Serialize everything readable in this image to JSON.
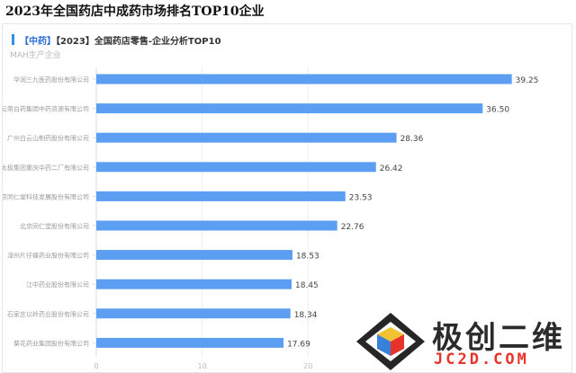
{
  "page": {
    "title": "2023年全国药店中成药市场排名TOP10企业"
  },
  "card": {
    "tag_left": "【中药】",
    "title": "【2023】全国药店零售-企业分析TOP10"
  },
  "chart_data": {
    "type": "bar",
    "orientation": "horizontal",
    "ylabel": "MAH生产企业",
    "categories": [
      "华润三九医药股份有限公司",
      "云南白药集团中药资源有限公司",
      "广州白云山制药股份有限公司",
      "太极集团重庆中药二厂有限公司",
      "北京同仁堂科技发展股份有限公司",
      "北京同仁堂股份有限公司",
      "漳州片仔癀药业股份有限公司",
      "江中药业股份有限公司",
      "石家庄以岭药业股份有限公司",
      "葵花药业集团股份有限公司"
    ],
    "values": [
      39.25,
      36.5,
      28.36,
      26.42,
      23.53,
      22.76,
      18.53,
      18.45,
      18.34,
      17.69
    ],
    "value_labels": [
      "39.25",
      "36.50",
      "28.36",
      "26.42",
      "23.53",
      "22.76",
      "18.53",
      "18.45",
      "18.34",
      "17.69"
    ],
    "x_ticks": [
      "0",
      "10",
      "20"
    ],
    "xlim": [
      0,
      42
    ],
    "grid": true,
    "bar_color": "#5b9ef2"
  },
  "watermark": {
    "name_cn": "极创二维",
    "name_en": "JC2D.COM"
  }
}
